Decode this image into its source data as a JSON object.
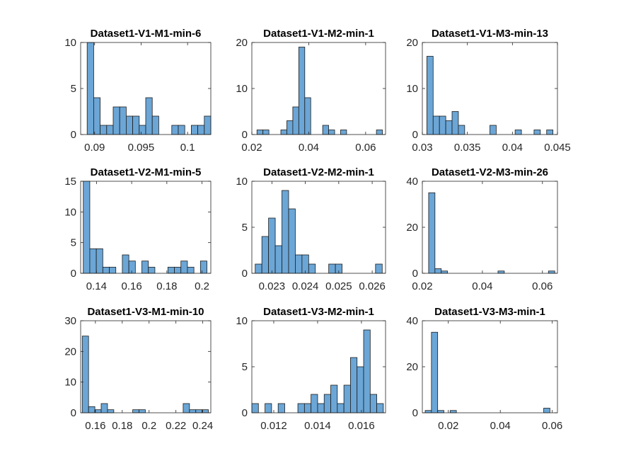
{
  "colors": {
    "bar_fill": "#6ba6d6",
    "bar_edge": "#1c1c1c",
    "axis": "#262626",
    "background": "#ffffff"
  },
  "chart_data": [
    {
      "type": "histogram",
      "title": "Dataset1-V1-M1-min-6",
      "xlim": [
        0.0885,
        0.1025
      ],
      "ylim": [
        0,
        10
      ],
      "xticks": [
        0.09,
        0.095,
        0.1
      ],
      "xtick_labels": [
        "0.09",
        "0.095",
        "0.1"
      ],
      "yticks": [
        0,
        5,
        10
      ],
      "ytick_labels": [
        "0",
        "5",
        "10"
      ],
      "bin_edges": [
        0.0892,
        0.0899,
        0.0906,
        0.0913,
        0.092,
        0.0927,
        0.0934,
        0.0941,
        0.0948,
        0.0955,
        0.0962,
        0.0969,
        0.0976,
        0.0983,
        0.099,
        0.0997,
        0.1004,
        0.1011,
        0.1018,
        0.1025
      ],
      "counts": [
        10,
        4,
        1,
        1,
        3,
        3,
        2,
        2,
        1,
        4,
        2,
        0,
        0,
        1,
        1,
        0,
        1,
        1,
        2
      ]
    },
    {
      "type": "histogram",
      "title": "Dataset1-V1-M2-min-1",
      "xlim": [
        0.02,
        0.067
      ],
      "ylim": [
        0,
        20
      ],
      "xticks": [
        0.02,
        0.04,
        0.06
      ],
      "xtick_labels": [
        "0.02",
        "0.04",
        "0.06"
      ],
      "yticks": [
        0,
        10,
        20
      ],
      "ytick_labels": [
        "0",
        "10",
        "20"
      ],
      "bin_edges": [
        0.0218,
        0.0239,
        0.026,
        0.0281,
        0.0302,
        0.0323,
        0.0344,
        0.0365,
        0.0386,
        0.0407,
        0.0428,
        0.0449,
        0.047,
        0.0491,
        0.0512,
        0.0533,
        0.0554,
        0.0575,
        0.0596,
        0.0617,
        0.0638,
        0.0659
      ],
      "counts": [
        1,
        1,
        0,
        0,
        1,
        3,
        6,
        19,
        8,
        0,
        0,
        2,
        1,
        0,
        1,
        0,
        0,
        0,
        0,
        0,
        1
      ]
    },
    {
      "type": "histogram",
      "title": "Dataset1-V1-M3-min-13",
      "xlim": [
        0.03,
        0.045
      ],
      "ylim": [
        0,
        20
      ],
      "xticks": [
        0.03,
        0.035,
        0.04,
        0.045
      ],
      "xtick_labels": [
        "0.03",
        "0.035",
        "0.04",
        "0.045"
      ],
      "yticks": [
        0,
        10,
        20
      ],
      "ytick_labels": [
        "0",
        "10",
        "20"
      ],
      "bin_edges": [
        0.0305,
        0.0312,
        0.0319,
        0.0326,
        0.0333,
        0.034,
        0.0347,
        0.0354,
        0.0361,
        0.0368,
        0.0375,
        0.0382,
        0.0389,
        0.0396,
        0.0403,
        0.041,
        0.0417,
        0.0424,
        0.0431,
        0.0438,
        0.0445
      ],
      "counts": [
        17,
        4,
        4,
        3,
        5,
        2,
        0,
        0,
        0,
        0,
        2,
        0,
        0,
        0,
        1,
        0,
        0,
        1,
        0,
        1
      ]
    },
    {
      "type": "histogram",
      "title": "Dataset1-V2-M1-min-5",
      "xlim": [
        0.131,
        0.205
      ],
      "ylim": [
        0,
        15
      ],
      "xticks": [
        0.14,
        0.16,
        0.18,
        0.2
      ],
      "xtick_labels": [
        "0.14",
        "0.16",
        "0.18",
        "0.2"
      ],
      "yticks": [
        0,
        5,
        10,
        15
      ],
      "ytick_labels": [
        "0",
        "5",
        "10",
        "15"
      ],
      "bin_edges": [
        0.1325,
        0.1362,
        0.1399,
        0.1436,
        0.1473,
        0.151,
        0.1547,
        0.1584,
        0.1621,
        0.1658,
        0.1695,
        0.1732,
        0.1769,
        0.1806,
        0.1843,
        0.188,
        0.1917,
        0.1954,
        0.1991,
        0.2028
      ],
      "counts": [
        15,
        4,
        4,
        1,
        1,
        0,
        3,
        2,
        0,
        2,
        1,
        0,
        0,
        1,
        1,
        2,
        1,
        0,
        2
      ]
    },
    {
      "type": "histogram",
      "title": "Dataset1-V2-M2-min-1",
      "xlim": [
        0.0224,
        0.0264
      ],
      "ylim": [
        0,
        10
      ],
      "xticks": [
        0.023,
        0.024,
        0.025,
        0.026
      ],
      "xtick_labels": [
        "0.023",
        "0.024",
        "0.025",
        "0.026"
      ],
      "yticks": [
        0,
        5,
        10
      ],
      "ytick_labels": [
        "0",
        "5",
        "10"
      ],
      "bin_edges": [
        0.0225,
        0.0227,
        0.0229,
        0.0231,
        0.0233,
        0.0235,
        0.0237,
        0.0239,
        0.0241,
        0.0243,
        0.0245,
        0.0247,
        0.0249,
        0.0251,
        0.0253,
        0.0255,
        0.0257,
        0.0259,
        0.0261,
        0.0263
      ],
      "counts": [
        1,
        4,
        6,
        3,
        9,
        7,
        2,
        2,
        1,
        0,
        0,
        1,
        1,
        0,
        0,
        0,
        0,
        0,
        1
      ]
    },
    {
      "type": "histogram",
      "title": "Dataset1-V2-M3-min-26",
      "xlim": [
        0.02,
        0.065
      ],
      "ylim": [
        0,
        40
      ],
      "xticks": [
        0.02,
        0.04,
        0.06
      ],
      "xtick_labels": [
        "0.02",
        "0.04",
        "0.06"
      ],
      "yticks": [
        0,
        20,
        40
      ],
      "ytick_labels": [
        "0",
        "20",
        "40"
      ],
      "bin_edges": [
        0.0221,
        0.0242,
        0.0263,
        0.0284,
        0.0305,
        0.0326,
        0.0347,
        0.0368,
        0.0389,
        0.041,
        0.0431,
        0.0452,
        0.0473,
        0.0494,
        0.0515,
        0.0536,
        0.0557,
        0.0578,
        0.0599,
        0.062,
        0.0641
      ],
      "counts": [
        35,
        2,
        1,
        0,
        0,
        0,
        0,
        0,
        0,
        0,
        0,
        1,
        0,
        0,
        0,
        0,
        0,
        0,
        0,
        1
      ]
    },
    {
      "type": "histogram",
      "title": "Dataset1-V3-M1-min-10",
      "xlim": [
        0.149,
        0.246
      ],
      "ylim": [
        0,
        30
      ],
      "xticks": [
        0.16,
        0.18,
        0.2,
        0.22,
        0.24
      ],
      "xtick_labels": [
        "0.16",
        "0.18",
        "0.2",
        "0.22",
        "0.24"
      ],
      "yticks": [
        0,
        10,
        20,
        30
      ],
      "ytick_labels": [
        "0",
        "10",
        "20",
        "30"
      ],
      "bin_edges": [
        0.1502,
        0.1549,
        0.1596,
        0.1643,
        0.169,
        0.1737,
        0.1784,
        0.1831,
        0.1878,
        0.1925,
        0.1972,
        0.2019,
        0.2066,
        0.2113,
        0.216,
        0.2207,
        0.2254,
        0.2301,
        0.2348,
        0.2395,
        0.2442
      ],
      "counts": [
        25,
        2,
        1,
        3,
        1,
        0,
        0,
        0,
        1,
        1,
        0,
        0,
        0,
        0,
        0,
        0,
        3,
        1,
        1,
        1
      ]
    },
    {
      "type": "histogram",
      "title": "Dataset1-V3-M2-min-1",
      "xlim": [
        0.011,
        0.0171
      ],
      "ylim": [
        0,
        10
      ],
      "xticks": [
        0.012,
        0.014,
        0.016
      ],
      "xtick_labels": [
        "0.012",
        "0.014",
        "0.016"
      ],
      "yticks": [
        0,
        5,
        10
      ],
      "ytick_labels": [
        "0",
        "5",
        "10"
      ],
      "bin_edges": [
        0.011,
        0.0113,
        0.0116,
        0.0119,
        0.0122,
        0.0125,
        0.0128,
        0.0131,
        0.0134,
        0.0137,
        0.014,
        0.0143,
        0.0146,
        0.0149,
        0.0152,
        0.0155,
        0.0158,
        0.0161,
        0.0164,
        0.0167,
        0.017
      ],
      "counts": [
        1,
        0,
        1,
        0,
        1,
        0,
        0,
        1,
        1,
        2,
        1,
        2,
        3,
        1,
        3,
        6,
        5,
        9,
        2,
        1
      ]
    },
    {
      "type": "histogram",
      "title": "Dataset1-V3-M3-min-1",
      "xlim": [
        0.01,
        0.062
      ],
      "ylim": [
        0,
        40
      ],
      "xticks": [
        0.02,
        0.04,
        0.06
      ],
      "xtick_labels": [
        "0.02",
        "0.04",
        "0.06"
      ],
      "yticks": [
        0,
        20,
        40
      ],
      "ytick_labels": [
        "0",
        "20",
        "40"
      ],
      "bin_edges": [
        0.0111,
        0.0135,
        0.0159,
        0.0183,
        0.0207,
        0.0231,
        0.0255,
        0.0279,
        0.0303,
        0.0327,
        0.0351,
        0.0375,
        0.0399,
        0.0423,
        0.0447,
        0.0471,
        0.0495,
        0.0519,
        0.0543,
        0.0567,
        0.0591
      ],
      "counts": [
        1,
        35,
        1,
        0,
        1,
        0,
        0,
        0,
        0,
        0,
        0,
        0,
        0,
        0,
        0,
        0,
        0,
        0,
        0,
        2
      ]
    }
  ]
}
